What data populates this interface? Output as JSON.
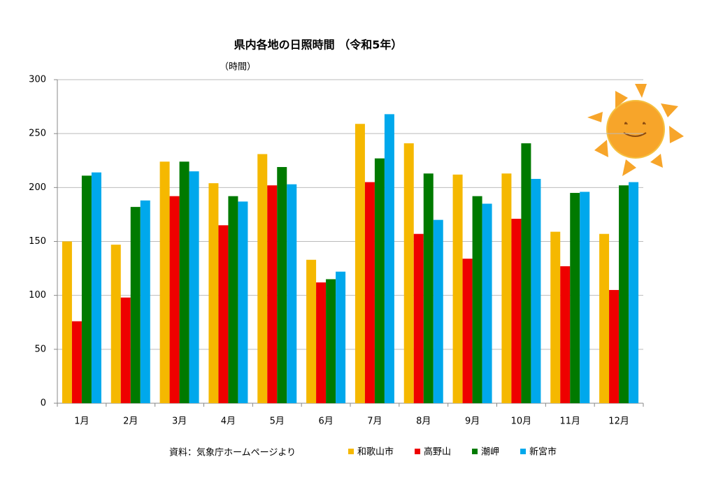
{
  "chart_data": {
    "type": "bar",
    "title": "県内各地の日照時間 （令和5年）",
    "y_label": "（時間）",
    "source": "資料：気象庁ホームページより",
    "categories": [
      "1月",
      "2月",
      "3月",
      "4月",
      "5月",
      "6月",
      "7月",
      "8月",
      "9月",
      "10月",
      "11月",
      "12月"
    ],
    "series": [
      {
        "name": "和歌山市",
        "color": "#f5b800",
        "values": [
          150,
          147,
          224,
          204,
          231,
          133,
          259,
          241,
          212,
          213,
          159,
          157
        ]
      },
      {
        "name": "高野山",
        "color": "#ee0000",
        "values": [
          76,
          98,
          192,
          165,
          202,
          112,
          205,
          157,
          134,
          171,
          127,
          105
        ]
      },
      {
        "name": "潮岬",
        "color": "#007a00",
        "values": [
          211,
          182,
          224,
          192,
          219,
          115,
          227,
          213,
          192,
          241,
          195,
          202
        ]
      },
      {
        "name": "新宮市",
        "color": "#00a8ec",
        "values": [
          214,
          188,
          215,
          187,
          203,
          122,
          268,
          170,
          185,
          208,
          196,
          205
        ]
      }
    ],
    "ylim": [
      0,
      300
    ],
    "yticks": [
      0,
      50,
      100,
      150,
      200,
      250,
      300
    ],
    "grid": true
  }
}
